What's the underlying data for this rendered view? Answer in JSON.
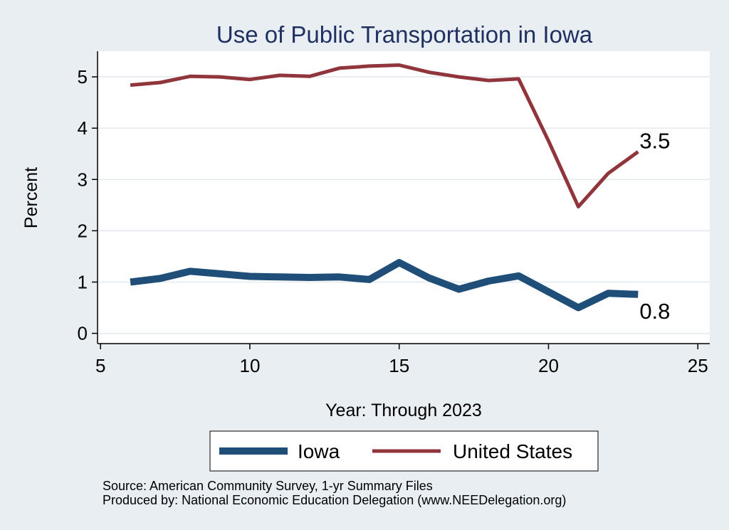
{
  "chart_data": {
    "type": "line",
    "title": "Use of Public Transportation in Iowa",
    "xlabel": "Year: Through 2023",
    "ylabel": "Percent",
    "xlim": [
      4.9,
      25.4
    ],
    "ylim": [
      -0.2,
      5.5
    ],
    "xticks": [
      5,
      10,
      15,
      20,
      25
    ],
    "yticks": [
      0,
      1,
      2,
      3,
      4,
      5
    ],
    "grid": true,
    "legend_position": "bottom",
    "x": [
      6,
      7,
      8,
      9,
      10,
      11,
      12,
      13,
      14,
      15,
      16,
      17,
      18,
      19,
      20,
      21,
      22,
      23
    ],
    "series": [
      {
        "name": "Iowa",
        "color": "#1f4e79",
        "values": [
          1.0,
          1.07,
          1.21,
          1.16,
          1.11,
          1.1,
          1.09,
          1.1,
          1.05,
          1.38,
          1.08,
          0.86,
          1.02,
          1.12,
          0.81,
          0.5,
          0.78,
          0.76
        ],
        "end_label": "0.8"
      },
      {
        "name": "United States",
        "color": "#90353b",
        "values": [
          4.84,
          4.89,
          5.01,
          5.0,
          4.95,
          5.03,
          5.01,
          5.17,
          5.21,
          5.23,
          5.09,
          5.0,
          4.93,
          4.96,
          3.75,
          2.47,
          3.12,
          3.54
        ],
        "end_label": "3.5"
      }
    ]
  },
  "footer": {
    "source": "Source: American Community Survey, 1-yr Summary Files",
    "produced_by": "Produced by: National Economic Education Delegation (www.NEEDelegation.org)"
  }
}
